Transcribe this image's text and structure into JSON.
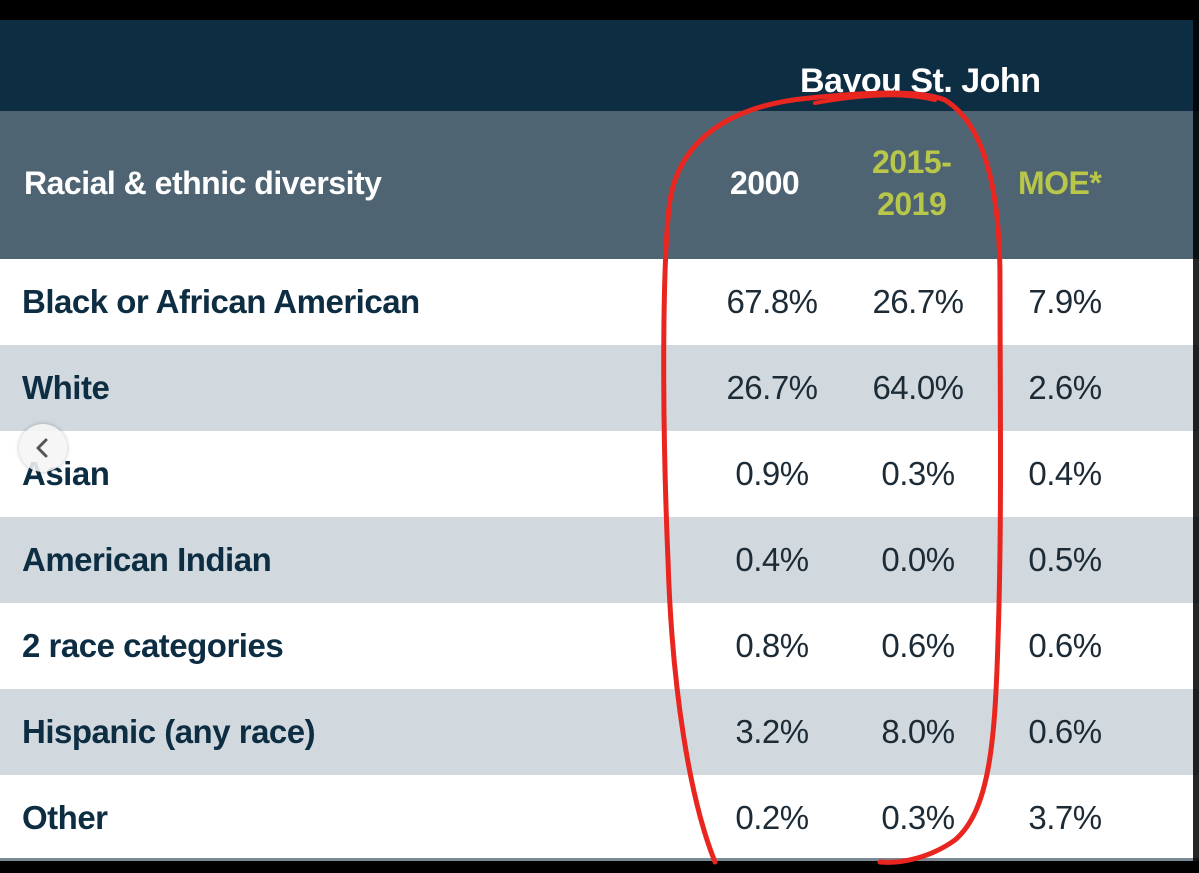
{
  "table": {
    "region_title": "Bayou St. John",
    "row_header_title": "Racial & ethnic diversity",
    "columns": [
      "2000",
      "2015-\n2019",
      "MOE*"
    ],
    "column_colors": [
      "#ffffff",
      "#b8c64a",
      "#b8c64a"
    ],
    "rows": [
      {
        "label": "Black or African American",
        "values": [
          "67.8%",
          "26.7%",
          "7.9%"
        ]
      },
      {
        "label": "White",
        "values": [
          "26.7%",
          "64.0%",
          "2.6%"
        ]
      },
      {
        "label": "Asian",
        "values": [
          "0.9%",
          "0.3%",
          "0.4%"
        ]
      },
      {
        "label": "American Indian",
        "values": [
          "0.4%",
          "0.0%",
          "0.5%"
        ]
      },
      {
        "label": "2 race categories",
        "values": [
          "0.8%",
          "0.6%",
          "0.6%"
        ]
      },
      {
        "label": "Hispanic (any race)",
        "values": [
          "3.2%",
          "8.0%",
          "0.6%"
        ]
      },
      {
        "label": "Other",
        "values": [
          "0.2%",
          "0.3%",
          "3.7%"
        ]
      }
    ]
  },
  "chart_data": {
    "type": "table",
    "title": "Bayou St. John",
    "row_header": "Racial & ethnic diversity",
    "columns": [
      "2000",
      "2015-2019",
      "MOE*"
    ],
    "categories": [
      "Black or African American",
      "White",
      "Asian",
      "American Indian",
      "2 race categories",
      "Hispanic (any race)",
      "Other"
    ],
    "series": [
      {
        "name": "2000",
        "values": [
          67.8,
          26.7,
          0.9,
          0.4,
          0.8,
          3.2,
          0.2
        ]
      },
      {
        "name": "2015-2019",
        "values": [
          26.7,
          64.0,
          0.3,
          0.0,
          0.6,
          8.0,
          0.3
        ]
      },
      {
        "name": "MOE*",
        "values": [
          7.9,
          2.6,
          0.4,
          0.5,
          0.6,
          0.6,
          3.7
        ]
      }
    ]
  },
  "icons": {
    "prev": "chevron-left-icon"
  },
  "annotation": {
    "color": "#e8261f"
  },
  "colors": {
    "header_dark": "#0d2d43",
    "header_mid": "#4e6472",
    "row_shaded": "#d1d9df",
    "accent_green": "#b8c64a"
  }
}
